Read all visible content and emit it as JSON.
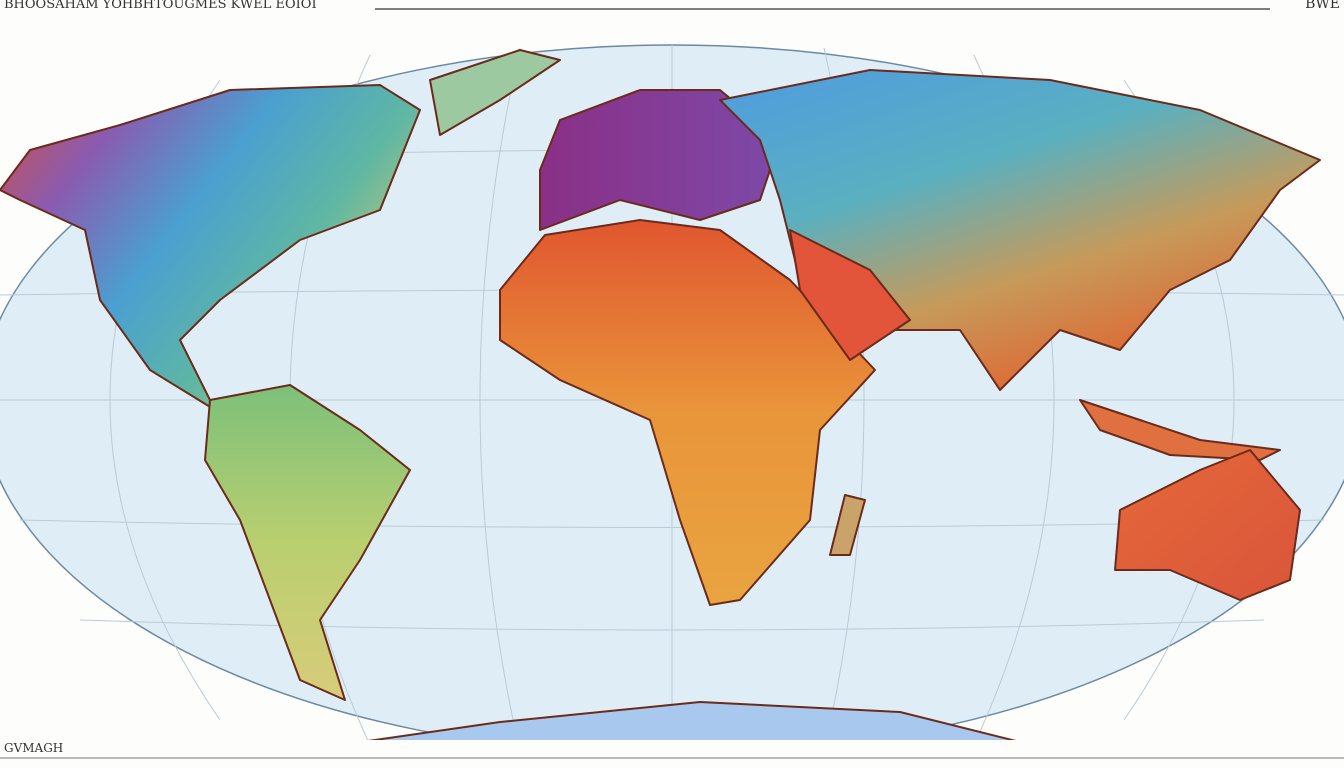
{
  "header": {
    "title": "BHOOSAHAM YOHBHTOUGMES KWEL EOIOI",
    "right_label": "BWE"
  },
  "footer": {
    "label": "GVMAGH"
  }
}
